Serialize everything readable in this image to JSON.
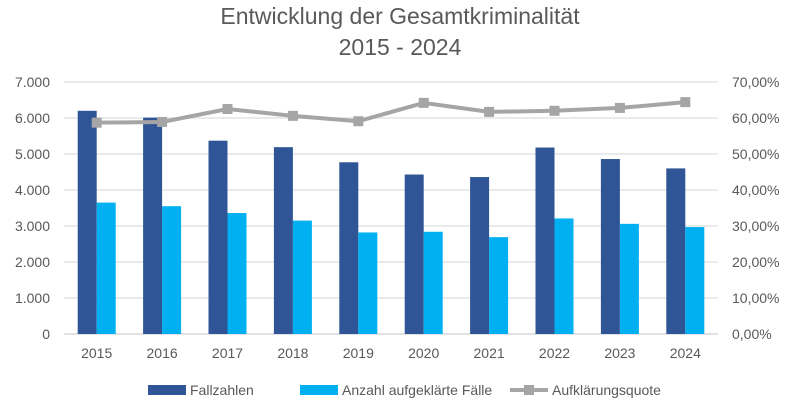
{
  "chart_data": {
    "type": "bar",
    "title": "Entwicklung der Gesamtkriminalität",
    "subtitle": "2015 - 2024",
    "categories": [
      "2015",
      "2016",
      "2017",
      "2018",
      "2019",
      "2020",
      "2021",
      "2022",
      "2023",
      "2024"
    ],
    "series": [
      {
        "name": "Fallzahlen",
        "type": "bar",
        "axis": "left",
        "color": "#2F5597",
        "values": [
          6200,
          6010,
          5370,
          5190,
          4770,
          4430,
          4360,
          5180,
          4860,
          4600
        ]
      },
      {
        "name": "Anzahl aufgeklärte Fälle",
        "type": "bar",
        "axis": "left",
        "color": "#00B0F0",
        "values": [
          3650,
          3550,
          3360,
          3150,
          2820,
          2840,
          2690,
          3210,
          3060,
          2970
        ]
      },
      {
        "name": "Aufklärungsquote",
        "type": "line",
        "axis": "right",
        "marker": "square",
        "color": "#A5A5A5",
        "values": [
          58.7,
          58.9,
          62.5,
          60.6,
          59.1,
          64.2,
          61.7,
          62.0,
          62.8,
          64.4
        ]
      }
    ],
    "ylim_left": [
      0,
      7000
    ],
    "ylim_right": [
      0,
      70
    ],
    "left_ticks": [
      "0",
      "1.000",
      "2.000",
      "3.000",
      "4.000",
      "5.000",
      "6.000",
      "7.000"
    ],
    "right_ticks": [
      "0,00%",
      "10,00%",
      "20,00%",
      "30,00%",
      "40,00%",
      "50,00%",
      "60,00%",
      "70,00%"
    ],
    "grid": true,
    "legend_position": "bottom"
  }
}
